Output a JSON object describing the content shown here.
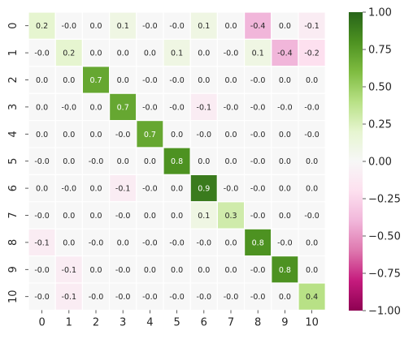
{
  "chart_data": {
    "type": "heatmap",
    "title": "",
    "xlabel": "",
    "ylabel": "",
    "x_tick_labels": [
      "0",
      "1",
      "2",
      "3",
      "4",
      "5",
      "6",
      "7",
      "8",
      "9",
      "10"
    ],
    "y_tick_labels": [
      "0",
      "1",
      "2",
      "3",
      "4",
      "5",
      "6",
      "7",
      "8",
      "9",
      "10"
    ],
    "values": [
      [
        0.2,
        -0.0,
        0.0,
        0.1,
        -0.0,
        -0.0,
        0.1,
        0.0,
        -0.4,
        0.0,
        -0.1
      ],
      [
        -0.0,
        0.2,
        0.0,
        0.0,
        0.0,
        0.1,
        0.0,
        -0.0,
        0.1,
        -0.4,
        -0.2
      ],
      [
        0.0,
        0.0,
        0.7,
        0.0,
        -0.0,
        -0.0,
        0.0,
        0.0,
        -0.0,
        0.0,
        0.0
      ],
      [
        0.0,
        -0.0,
        0.0,
        0.7,
        -0.0,
        -0.0,
        -0.1,
        -0.0,
        -0.0,
        -0.0,
        -0.0
      ],
      [
        0.0,
        0.0,
        0.0,
        -0.0,
        0.7,
        0.0,
        -0.0,
        0.0,
        -0.0,
        0.0,
        -0.0
      ],
      [
        -0.0,
        0.0,
        -0.0,
        0.0,
        0.0,
        0.8,
        0.0,
        0.0,
        -0.0,
        0.0,
        0.0
      ],
      [
        0.0,
        -0.0,
        0.0,
        -0.1,
        -0.0,
        0.0,
        0.9,
        -0.0,
        -0.0,
        0.0,
        0.0
      ],
      [
        -0.0,
        0.0,
        0.0,
        -0.0,
        0.0,
        0.0,
        0.1,
        0.3,
        -0.0,
        0.0,
        -0.0
      ],
      [
        -0.1,
        0.0,
        -0.0,
        0.0,
        -0.0,
        -0.0,
        -0.0,
        0.0,
        0.8,
        -0.0,
        0.0
      ],
      [
        -0.0,
        -0.1,
        0.0,
        -0.0,
        0.0,
        0.0,
        0.0,
        0.0,
        -0.0,
        0.8,
        0.0
      ],
      [
        -0.0,
        -0.1,
        -0.0,
        -0.0,
        -0.0,
        -0.0,
        -0.0,
        -0.0,
        -0.0,
        0.0,
        0.4
      ]
    ],
    "cell_labels": [
      [
        "0.2",
        "-0.0",
        "0.0",
        "0.1",
        "-0.0",
        "-0.0",
        "0.1",
        "0.0",
        "-0.4",
        "0.0",
        "-0.1"
      ],
      [
        "-0.0",
        "0.2",
        "0.0",
        "0.0",
        "0.0",
        "0.1",
        "0.0",
        "-0.0",
        "0.1",
        "-0.4",
        "-0.2"
      ],
      [
        "0.0",
        "0.0",
        "0.7",
        "0.0",
        "-0.0",
        "-0.0",
        "0.0",
        "0.0",
        "-0.0",
        "0.0",
        "0.0"
      ],
      [
        "0.0",
        "-0.0",
        "0.0",
        "0.7",
        "-0.0",
        "-0.0",
        "-0.1",
        "-0.0",
        "-0.0",
        "-0.0",
        "-0.0"
      ],
      [
        "0.0",
        "0.0",
        "0.0",
        "-0.0",
        "0.7",
        "0.0",
        "-0.0",
        "0.0",
        "-0.0",
        "0.0",
        "-0.0"
      ],
      [
        "-0.0",
        "0.0",
        "-0.0",
        "0.0",
        "0.0",
        "0.8",
        "0.0",
        "0.0",
        "-0.0",
        "0.0",
        "0.0"
      ],
      [
        "0.0",
        "-0.0",
        "0.0",
        "-0.1",
        "-0.0",
        "0.0",
        "0.9",
        "-0.0",
        "-0.0",
        "0.0",
        "0.0"
      ],
      [
        "-0.0",
        "0.0",
        "0.0",
        "-0.0",
        "0.0",
        "0.0",
        "0.1",
        "0.3",
        "-0.0",
        "0.0",
        "-0.0"
      ],
      [
        "-0.1",
        "0.0",
        "-0.0",
        "0.0",
        "-0.0",
        "-0.0",
        "-0.0",
        "0.0",
        "0.8",
        "-0.0",
        "0.0"
      ],
      [
        "-0.0",
        "-0.1",
        "0.0",
        "-0.0",
        "0.0",
        "0.0",
        "0.0",
        "0.0",
        "-0.0",
        "0.8",
        "0.0"
      ],
      [
        "-0.0",
        "-0.1",
        "-0.0",
        "-0.0",
        "-0.0",
        "-0.0",
        "-0.0",
        "-0.0",
        "-0.0",
        "0.0",
        "0.4"
      ]
    ],
    "colormap": "PiYG",
    "vmin": -1.0,
    "vmax": 1.0,
    "colorbar_ticks": [
      1.0,
      0.75,
      0.5,
      0.25,
      0.0,
      -0.25,
      -0.5,
      -0.75,
      -1.0
    ],
    "colorbar_tick_labels": [
      "1.00",
      "0.75",
      "0.50",
      "0.25",
      "0.00",
      "−0.25",
      "−0.50",
      "−0.75",
      "−1.00"
    ],
    "cell_separator_color": "#ffffff",
    "grid": false,
    "legend": "colorbar-right"
  }
}
